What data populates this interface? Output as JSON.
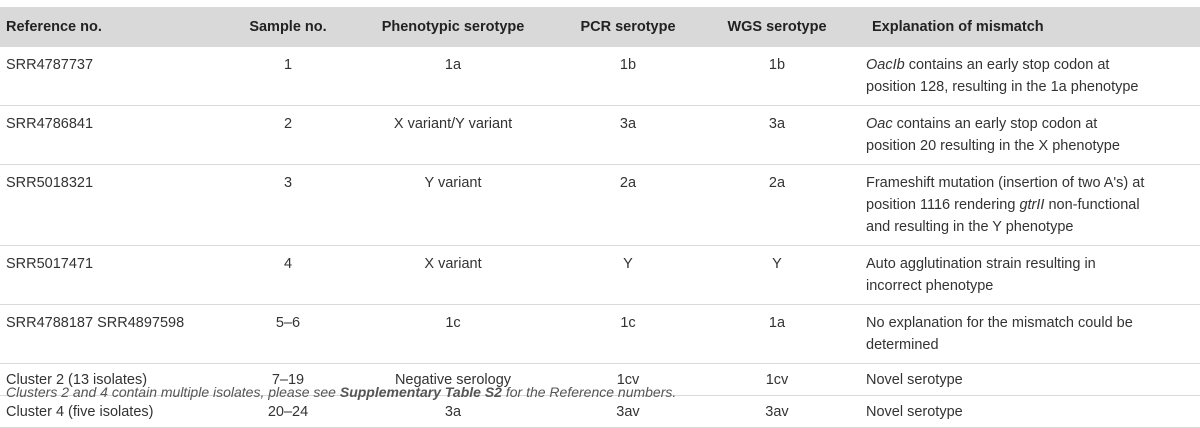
{
  "headers": {
    "ref": "Reference no.",
    "sample": "Sample no.",
    "pheno": "Phenotypic serotype",
    "pcr": "PCR serotype",
    "wgs": "WGS serotype",
    "expl": "Explanation of mismatch"
  },
  "rows": [
    {
      "ref": "SRR4787737",
      "sample": "1",
      "pheno": "1a",
      "pcr": "1b",
      "wgs": "1b",
      "expl": {
        "gene": "OacIb",
        "l1": " contains an early stop codon at",
        "l2": "position 128, resulting in the 1a phenotype"
      }
    },
    {
      "ref": "SRR4786841",
      "sample": "2",
      "pheno": "X variant/Y variant",
      "pcr": "3a",
      "wgs": "3a",
      "expl": {
        "gene": "Oac",
        "l1": " contains an early stop codon at",
        "l2": "position 20 resulting in the X phenotype"
      }
    },
    {
      "ref": "SRR5018321",
      "sample": "3",
      "pheno": "Y variant",
      "pcr": "2a",
      "wgs": "2a",
      "expl": {
        "l1": "Frameshift mutation (insertion of two A's) at",
        "l2a": "position 1116 rendering ",
        "gene": "gtrII",
        "l2b": " non-functional",
        "l3": "and resulting in the Y phenotype"
      }
    },
    {
      "ref": "SRR5017471",
      "sample": "4",
      "pheno": "X variant",
      "pcr": "Y",
      "wgs": "Y",
      "expl": {
        "l1": "Auto agglutination strain resulting in",
        "l2": "incorrect phenotype"
      }
    },
    {
      "ref": "SRR4788187 SRR4897598",
      "sample": "5–6",
      "pheno": "1c",
      "pcr": "1c",
      "wgs": "1a",
      "expl": {
        "l1": "No explanation for the mismatch could be",
        "l2": "determined"
      }
    },
    {
      "ref": "Cluster 2 (13 isolates)",
      "sample": "7–19",
      "pheno": "Negative serology",
      "pcr": "1cv",
      "wgs": "1cv",
      "expl": {
        "l1": "Novel serotype"
      }
    },
    {
      "ref": "Cluster 4 (five isolates)",
      "sample": "20–24",
      "pheno": "3a",
      "pcr": "3av",
      "wgs": "3av",
      "expl": {
        "l1": "Novel serotype"
      }
    }
  ],
  "caption": {
    "part1": "Clusters 2 and 4 contain multiple isolates, please see ",
    "bold": "Supplementary Table S2",
    "part2": " for the Reference numbers."
  }
}
